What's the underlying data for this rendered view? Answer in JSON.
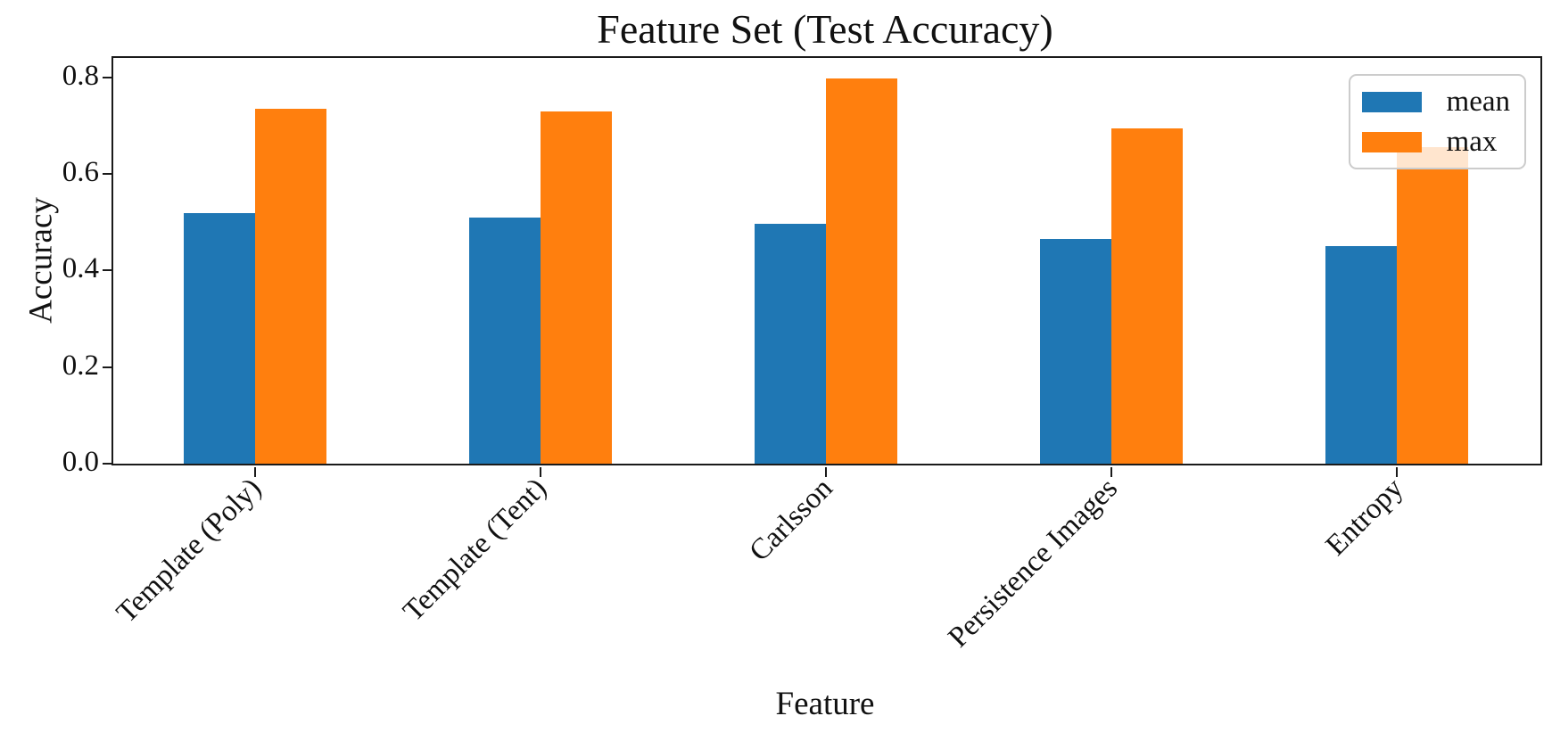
{
  "chart_data": {
    "type": "bar",
    "title": "Feature Set (Test Accuracy)",
    "xlabel": "Feature",
    "ylabel": "Accuracy",
    "categories": [
      "Template (Poly)",
      "Template (Tent)",
      "Carlsson",
      "Persistence Images",
      "Entropy"
    ],
    "series": [
      {
        "name": "mean",
        "color": "#1f77b4",
        "values": [
          0.518,
          0.51,
          0.496,
          0.466,
          0.451
        ]
      },
      {
        "name": "max",
        "color": "#ff7f0e",
        "values": [
          0.734,
          0.73,
          0.798,
          0.694,
          0.656
        ]
      }
    ],
    "ylim": [
      0,
      0.84
    ],
    "yticks": [
      0.0,
      0.2,
      0.4,
      0.6,
      0.8
    ],
    "ytick_labels": [
      "0.0",
      "0.2",
      "0.4",
      "0.6",
      "0.8"
    ],
    "xtick_rotation_deg": 45,
    "legend": {
      "entries": [
        "mean",
        "max"
      ],
      "position": "upper right"
    },
    "grid": false,
    "style": {
      "axis_color": "#1a1a1a",
      "text_color": "#111111",
      "legend_border_color": "#cccccc",
      "legend_background": "rgba(255,255,255,0.8)",
      "background": "#ffffff"
    }
  }
}
